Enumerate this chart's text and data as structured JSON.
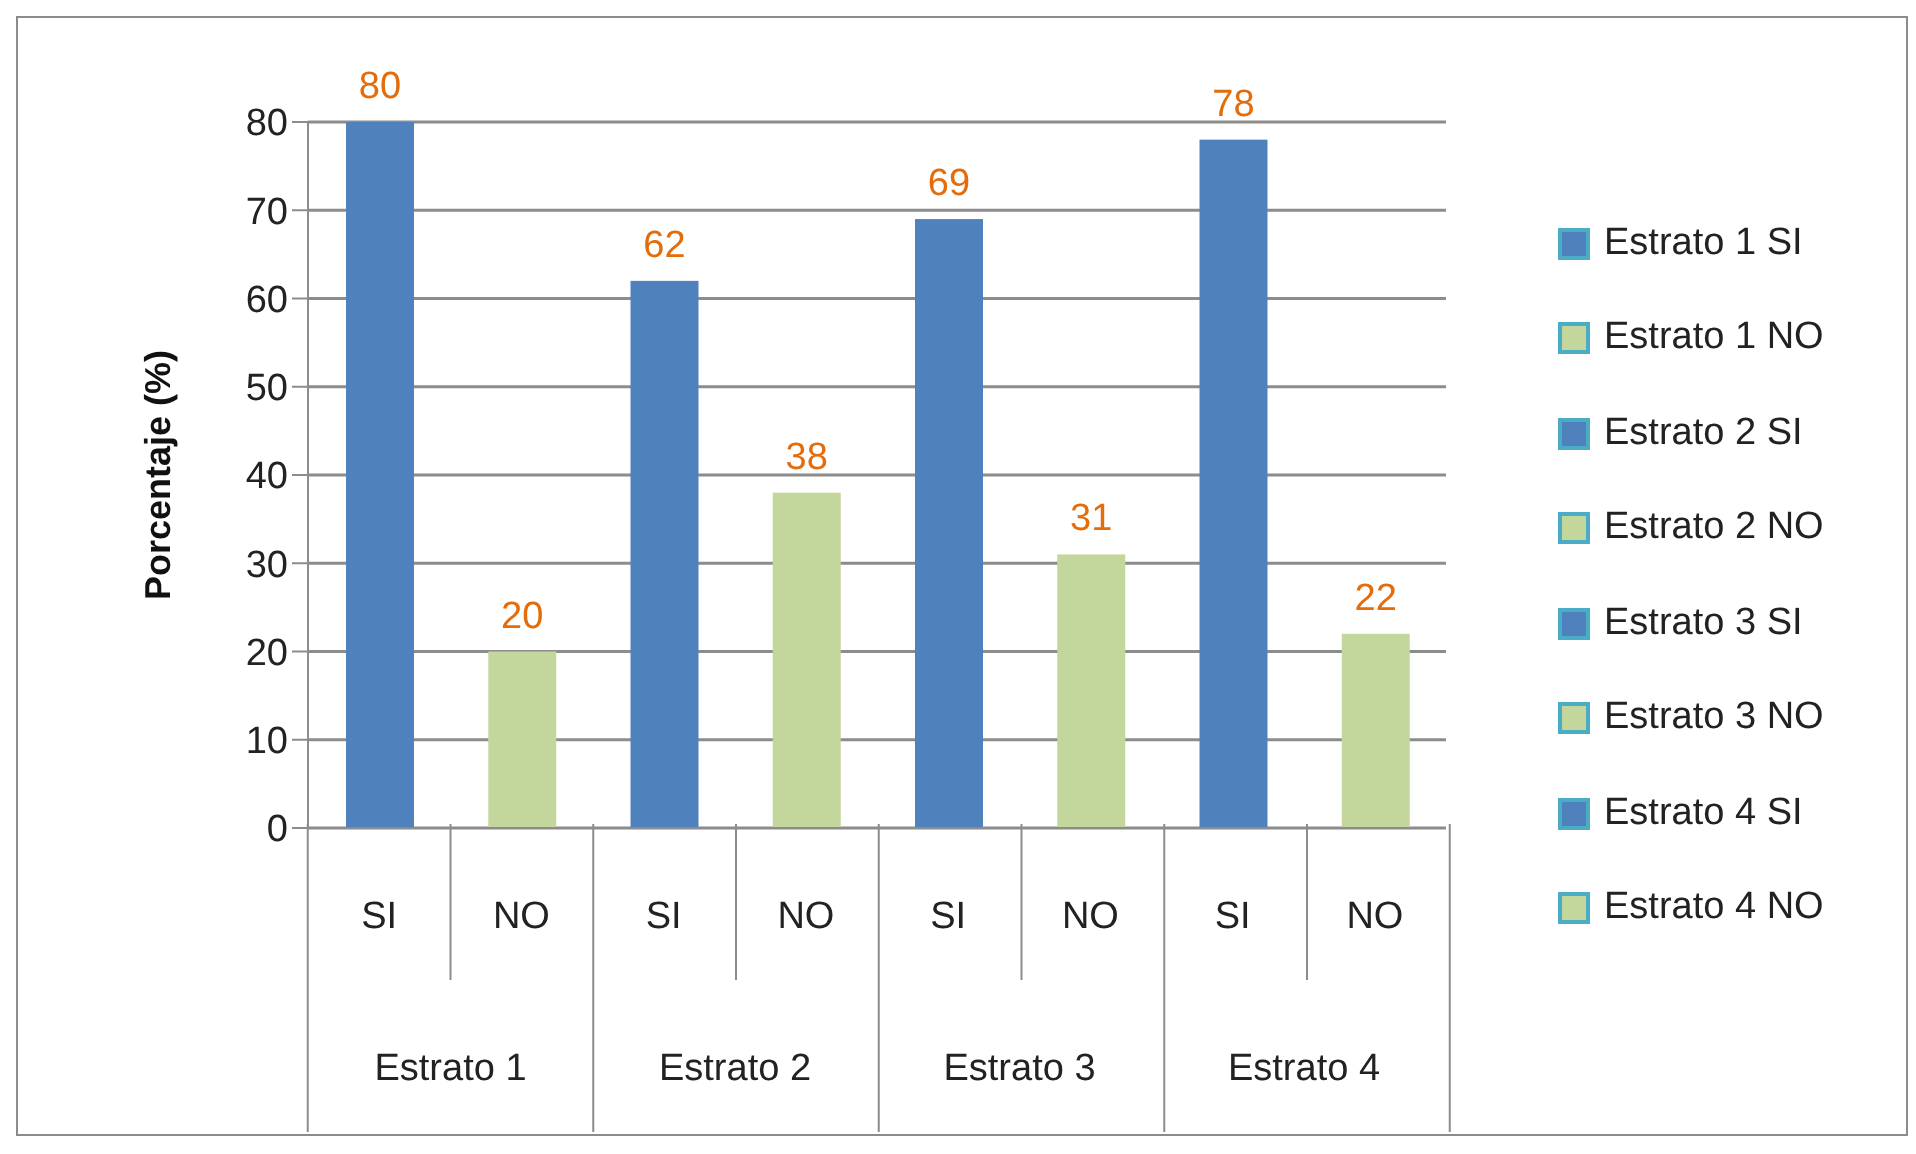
{
  "chart_data": {
    "type": "bar",
    "ylabel": "Porcentaje (%)",
    "categories": [
      "SI",
      "NO",
      "SI",
      "NO",
      "SI",
      "NO",
      "SI",
      "NO"
    ],
    "series": [
      {
        "name": "Estrato 1 SI",
        "color": "#4f81bd",
        "values": [
          80,
          null,
          null,
          null,
          null,
          null,
          null,
          null
        ]
      },
      {
        "name": "Estrato 1 NO",
        "color": "#c3d69b",
        "values": [
          null,
          20,
          null,
          null,
          null,
          null,
          null,
          null
        ]
      },
      {
        "name": "Estrato 2 SI",
        "color": "#4f81bd",
        "values": [
          null,
          null,
          62,
          null,
          null,
          null,
          null,
          null
        ]
      },
      {
        "name": "Estrato 2 NO",
        "color": "#c3d69b",
        "values": [
          null,
          null,
          null,
          38,
          null,
          null,
          null,
          null
        ]
      },
      {
        "name": "Estrato 3 SI",
        "color": "#4f81bd",
        "values": [
          null,
          null,
          null,
          null,
          69,
          null,
          null,
          null
        ]
      },
      {
        "name": "Estrato 3 NO",
        "color": "#c3d69b",
        "values": [
          null,
          null,
          null,
          null,
          null,
          31,
          null,
          null
        ]
      },
      {
        "name": "Estrato 4 SI",
        "color": "#4f81bd",
        "values": [
          null,
          null,
          null,
          null,
          null,
          null,
          78,
          null
        ]
      },
      {
        "name": "Estrato 4 NO",
        "color": "#c3d69b",
        "values": [
          null,
          null,
          null,
          null,
          null,
          null,
          null,
          22
        ]
      }
    ],
    "stacked": true,
    "ylim": [
      0,
      80
    ],
    "yticks": [
      0,
      10,
      20,
      30,
      40,
      50,
      60,
      70,
      80
    ],
    "grid": "y",
    "legend": "right",
    "data_labels": true,
    "annotations": [
      "Estrato 1",
      "Estrato 2",
      "Estrato 3",
      "Estrato 4"
    ]
  }
}
